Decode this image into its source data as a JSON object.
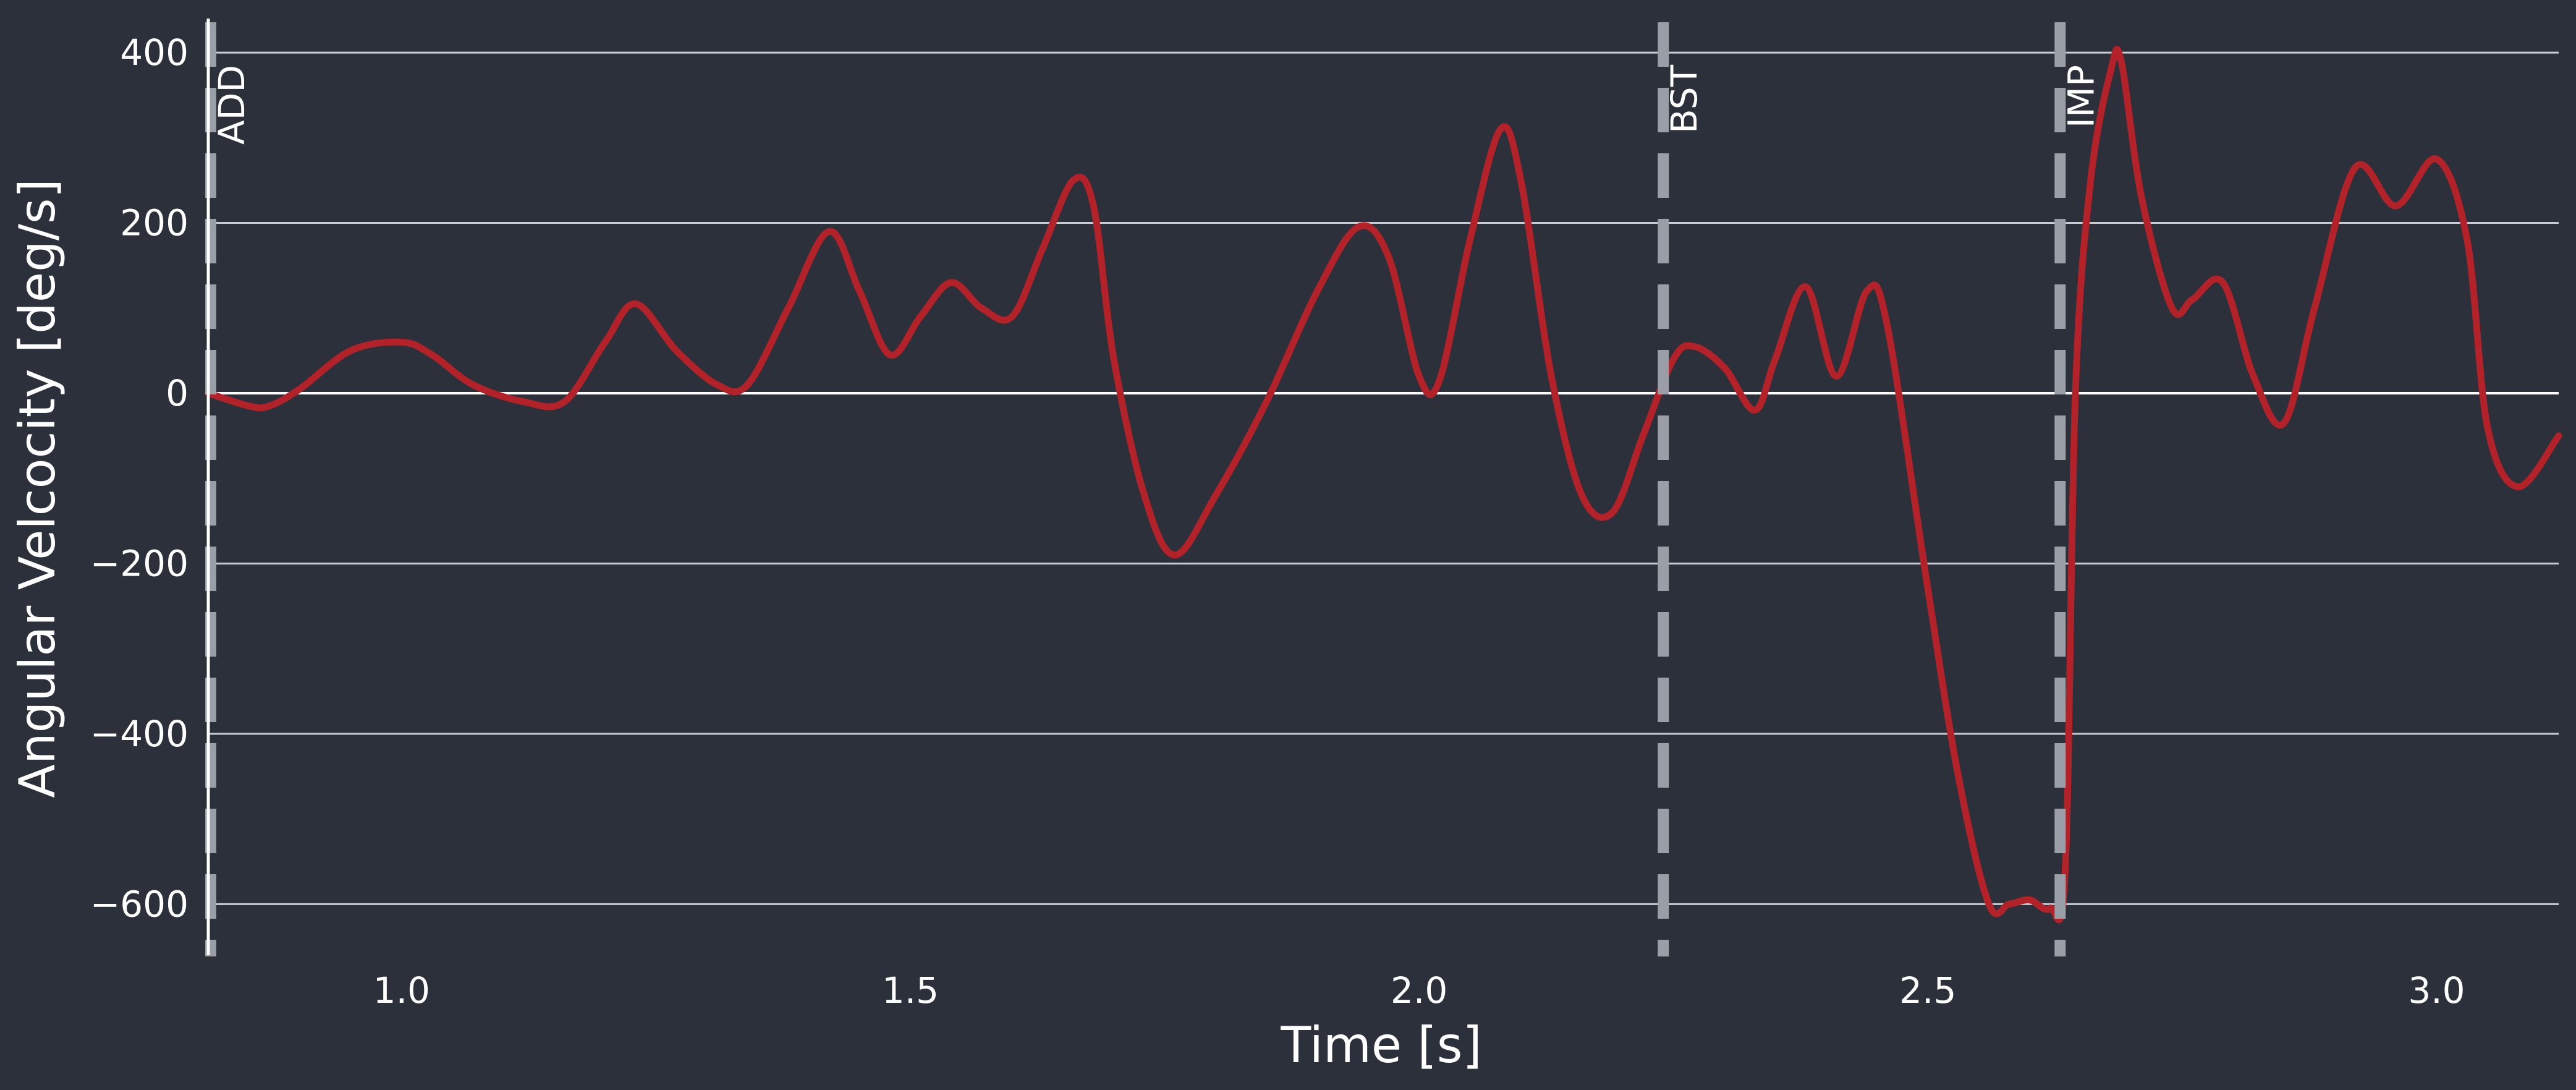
{
  "chart_data": {
    "type": "line",
    "title": "",
    "xlabel": "Time [s]",
    "ylabel": "Angular Velcocity [deg/s]",
    "xlim": [
      0.81,
      3.12
    ],
    "ylim": [
      -660,
      440
    ],
    "xticks": [
      1.0,
      1.5,
      2.0,
      2.5,
      3.0
    ],
    "xtick_labels": [
      "1.0",
      "1.5",
      "2.0",
      "2.5",
      "3.0"
    ],
    "yticks": [
      400,
      200,
      0,
      -200,
      -400,
      -600
    ],
    "ytick_labels": [
      "400",
      "200",
      "0",
      "−200",
      "−400",
      "−600"
    ],
    "grid": "horizontal",
    "legend": "none",
    "colors": {
      "background": "#2c303b",
      "series": "#b22228",
      "grid": "#c8cbd2",
      "event_line": "#9a9ea6",
      "text": "#ffffff"
    },
    "series": [
      {
        "x": [
          0.81,
          0.85,
          0.87,
          0.9,
          0.95,
          1.0,
          1.03,
          1.07,
          1.12,
          1.16,
          1.2,
          1.23,
          1.27,
          1.31,
          1.34,
          1.38,
          1.42,
          1.45,
          1.48,
          1.51,
          1.54,
          1.57,
          1.6,
          1.63,
          1.66,
          1.68,
          1.7,
          1.73,
          1.76,
          1.8,
          1.85,
          1.9,
          1.94,
          1.97,
          2.0,
          2.02,
          2.05,
          2.08,
          2.1,
          2.13,
          2.16,
          2.19,
          2.22,
          2.25,
          2.27,
          2.3,
          2.33,
          2.35,
          2.38,
          2.41,
          2.44,
          2.46,
          2.5,
          2.53,
          2.56,
          2.58,
          2.6,
          2.62,
          2.635,
          2.645,
          2.66,
          2.68,
          2.69,
          2.71,
          2.74,
          2.76,
          2.79,
          2.82,
          2.85,
          2.88,
          2.92,
          2.96,
          3.0,
          3.03,
          3.05,
          3.08,
          3.12
        ],
        "y": [
          0,
          -15,
          -15,
          5,
          50,
          60,
          45,
          10,
          -10,
          -10,
          60,
          105,
          50,
          10,
          10,
          100,
          190,
          120,
          45,
          90,
          130,
          100,
          90,
          170,
          250,
          220,
          40,
          -120,
          -190,
          -120,
          -10,
          120,
          195,
          160,
          20,
          15,
          180,
          310,
          250,
          20,
          -120,
          -140,
          -50,
          40,
          55,
          30,
          -20,
          40,
          125,
          20,
          120,
          80,
          -230,
          -450,
          -600,
          -600,
          -595,
          -605,
          -560,
          0,
          250,
          380,
          390,
          230,
          100,
          110,
          130,
          20,
          -35,
          100,
          265,
          220,
          275,
          180,
          -40,
          -110,
          -50
        ]
      }
    ],
    "events": [
      {
        "label": "ADD",
        "x": 0.81
      },
      {
        "label": "BST",
        "x": 2.24
      },
      {
        "label": "IMP",
        "x": 2.63
      }
    ]
  }
}
